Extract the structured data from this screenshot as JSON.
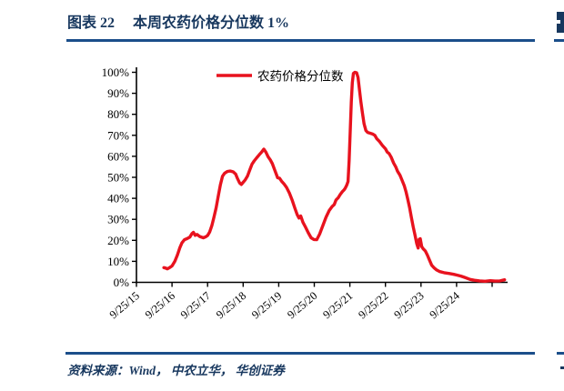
{
  "figure": {
    "label": "图表 22",
    "title": "本周农药价格分位数 1%",
    "source_note": "资料来源：Wind，  中农立华，  华创证券"
  },
  "colors": {
    "heading_navy": "#17375e",
    "rule_blue": "#1b4e8a",
    "series_red": "#e8121e",
    "axis_black": "#000000"
  },
  "chart_data": {
    "type": "line",
    "title": "",
    "legend": [
      "农药价格分位数"
    ],
    "legend_position": "top-center",
    "grid": "off",
    "x_axis": {
      "label": "",
      "tick_labels": [
        "9/25/15",
        "9/25/16",
        "9/25/17",
        "9/25/18",
        "9/25/19",
        "9/25/20",
        "9/25/21",
        "9/25/22",
        "9/25/23",
        "9/25/24"
      ],
      "tick_label_rotation_deg": -40,
      "x_unit": "years_after_2015-09-25"
    },
    "y_axis": {
      "ticks": [
        0,
        10,
        20,
        30,
        40,
        50,
        60,
        70,
        80,
        90,
        100
      ],
      "tick_suffix": "%",
      "range": [
        0,
        100
      ]
    },
    "series": [
      {
        "name": "农药价格分位数",
        "color": "#e8121e",
        "points": [
          [
            0.77,
            7.0
          ],
          [
            0.82,
            6.8
          ],
          [
            0.87,
            6.4
          ],
          [
            0.93,
            7.0
          ],
          [
            1.0,
            7.8
          ],
          [
            1.08,
            10.0
          ],
          [
            1.15,
            13.0
          ],
          [
            1.22,
            16.5
          ],
          [
            1.28,
            18.8
          ],
          [
            1.35,
            20.3
          ],
          [
            1.42,
            20.8
          ],
          [
            1.5,
            21.5
          ],
          [
            1.56,
            23.2
          ],
          [
            1.6,
            23.8
          ],
          [
            1.65,
            22.4
          ],
          [
            1.7,
            22.8
          ],
          [
            1.78,
            21.8
          ],
          [
            1.88,
            21.2
          ],
          [
            1.95,
            21.7
          ],
          [
            2.0,
            22.3
          ],
          [
            2.06,
            24.0
          ],
          [
            2.12,
            27.0
          ],
          [
            2.18,
            31.0
          ],
          [
            2.24,
            35.5
          ],
          [
            2.3,
            41.0
          ],
          [
            2.36,
            46.5
          ],
          [
            2.42,
            50.5
          ],
          [
            2.48,
            52.0
          ],
          [
            2.56,
            52.8
          ],
          [
            2.64,
            53.0
          ],
          [
            2.72,
            52.6
          ],
          [
            2.79,
            51.5
          ],
          [
            2.84,
            49.5
          ],
          [
            2.9,
            47.3
          ],
          [
            2.95,
            46.6
          ],
          [
            3.0,
            47.6
          ],
          [
            3.06,
            48.8
          ],
          [
            3.12,
            50.5
          ],
          [
            3.18,
            53.2
          ],
          [
            3.25,
            56.3
          ],
          [
            3.31,
            57.8
          ],
          [
            3.38,
            59.3
          ],
          [
            3.45,
            60.7
          ],
          [
            3.52,
            62.0
          ],
          [
            3.58,
            63.4
          ],
          [
            3.64,
            62.0
          ],
          [
            3.7,
            59.8
          ],
          [
            3.76,
            58.4
          ],
          [
            3.82,
            56.5
          ],
          [
            3.88,
            53.8
          ],
          [
            3.93,
            51.5
          ],
          [
            3.97,
            49.8
          ],
          [
            4.02,
            49.6
          ],
          [
            4.08,
            48.2
          ],
          [
            4.15,
            46.8
          ],
          [
            4.22,
            45.2
          ],
          [
            4.3,
            42.5
          ],
          [
            4.38,
            39.0
          ],
          [
            4.45,
            35.5
          ],
          [
            4.52,
            32.2
          ],
          [
            4.57,
            30.6
          ],
          [
            4.62,
            31.6
          ],
          [
            4.68,
            28.6
          ],
          [
            4.75,
            26.4
          ],
          [
            4.83,
            23.6
          ],
          [
            4.91,
            21.2
          ],
          [
            4.99,
            20.4
          ],
          [
            5.07,
            20.3
          ],
          [
            5.15,
            23.0
          ],
          [
            5.24,
            27.0
          ],
          [
            5.33,
            31.0
          ],
          [
            5.42,
            34.2
          ],
          [
            5.5,
            36.1
          ],
          [
            5.56,
            37.0
          ],
          [
            5.61,
            39.2
          ],
          [
            5.67,
            40.2
          ],
          [
            5.73,
            41.8
          ],
          [
            5.79,
            43.2
          ],
          [
            5.83,
            43.9
          ],
          [
            5.87,
            44.8
          ],
          [
            5.91,
            46.2
          ],
          [
            5.95,
            48.0
          ],
          [
            5.98,
            58.0
          ],
          [
            6.01,
            72.0
          ],
          [
            6.04,
            86.0
          ],
          [
            6.07,
            95.0
          ],
          [
            6.1,
            99.5
          ],
          [
            6.14,
            100.0
          ],
          [
            6.19,
            99.8
          ],
          [
            6.23,
            97.5
          ],
          [
            6.27,
            91.5
          ],
          [
            6.31,
            86.0
          ],
          [
            6.35,
            81.0
          ],
          [
            6.4,
            75.5
          ],
          [
            6.45,
            72.3
          ],
          [
            6.5,
            71.4
          ],
          [
            6.57,
            71.0
          ],
          [
            6.64,
            70.6
          ],
          [
            6.7,
            70.0
          ],
          [
            6.76,
            68.3
          ],
          [
            6.83,
            67.1
          ],
          [
            6.91,
            65.3
          ],
          [
            7.0,
            63.6
          ],
          [
            7.05,
            62.0
          ],
          [
            7.1,
            61.4
          ],
          [
            7.16,
            59.6
          ],
          [
            7.23,
            56.8
          ],
          [
            7.29,
            55.0
          ],
          [
            7.34,
            52.9
          ],
          [
            7.41,
            51.0
          ],
          [
            7.47,
            48.5
          ],
          [
            7.53,
            46.0
          ],
          [
            7.58,
            43.0
          ],
          [
            7.63,
            39.5
          ],
          [
            7.68,
            35.5
          ],
          [
            7.73,
            31.0
          ],
          [
            7.78,
            26.5
          ],
          [
            7.83,
            22.5
          ],
          [
            7.88,
            18.5
          ],
          [
            7.92,
            16.3
          ],
          [
            7.95,
            20.5
          ],
          [
            7.98,
            20.8
          ],
          [
            8.02,
            17.0
          ],
          [
            8.06,
            16.0
          ],
          [
            8.12,
            15.0
          ],
          [
            8.18,
            13.0
          ],
          [
            8.24,
            10.5
          ],
          [
            8.3,
            8.2
          ],
          [
            8.36,
            7.0
          ],
          [
            8.44,
            5.9
          ],
          [
            8.53,
            5.1
          ],
          [
            8.65,
            4.6
          ],
          [
            8.8,
            4.2
          ],
          [
            8.92,
            3.8
          ],
          [
            9.02,
            3.4
          ],
          [
            9.12,
            3.0
          ],
          [
            9.25,
            2.2
          ],
          [
            9.38,
            1.4
          ],
          [
            9.5,
            1.0
          ],
          [
            9.65,
            0.7
          ],
          [
            9.8,
            0.5
          ],
          [
            9.95,
            0.8
          ],
          [
            10.08,
            0.6
          ],
          [
            10.22,
            0.7
          ],
          [
            10.35,
            1.2
          ]
        ]
      }
    ]
  }
}
